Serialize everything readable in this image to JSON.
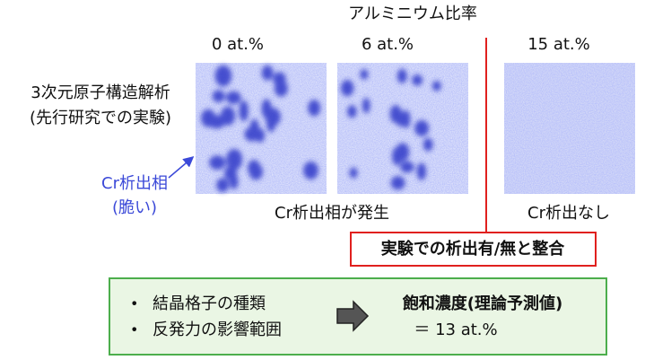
{
  "header": "アルミニウム比率",
  "panels": [
    {
      "label": "0 at.%"
    },
    {
      "label": "6 at.%"
    },
    {
      "label": "15 at.%"
    }
  ],
  "left_label": {
    "line1": "3次元原子構造解析",
    "line2": "(先行研究での実験)"
  },
  "phase_label": {
    "line1": "Cr析出相",
    "line2": "(脆い)"
  },
  "captions": {
    "left": "Cr析出相が発生",
    "right": "Cr析出なし"
  },
  "agreement": "実験での析出有/無と整合",
  "theory": {
    "bullets": [
      "結晶格子の種類",
      "反発力の影響範囲"
    ],
    "result_title": "飽和濃度(理論予測値)",
    "result_value": "＝ 13 at.%"
  }
}
